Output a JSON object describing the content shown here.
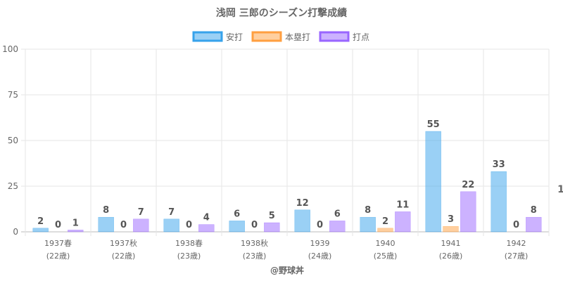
{
  "chart_data": {
    "type": "bar",
    "title": "浅岡 三郎のシーズン打撃成績",
    "categories": [
      "1937春",
      "1937秋",
      "1938春",
      "1938秋",
      "1939",
      "1940",
      "1941",
      "1942"
    ],
    "category_sublabels": [
      "(22歳)",
      "(22歳)",
      "(23歳)",
      "(23歳)",
      "(24歳)",
      "(25歳)",
      "(26歳)",
      "(27歳)"
    ],
    "series": [
      {
        "name": "安打",
        "values": [
          2,
          8,
          7,
          6,
          12,
          8,
          55,
          33
        ],
        "color": "#36a2eb"
      },
      {
        "name": "本塁打",
        "values": [
          0,
          0,
          0,
          0,
          0,
          2,
          3,
          0
        ],
        "color": "#ff9f40"
      },
      {
        "name": "打点",
        "values": [
          1,
          7,
          4,
          5,
          6,
          11,
          22,
          8
        ],
        "color": "#9966ff"
      }
    ],
    "yticks": [
      0,
      25,
      50,
      75,
      100
    ],
    "ylim": [
      0,
      100
    ],
    "grid": true,
    "legend_position": "top",
    "right_axis_label": "1"
  },
  "credit": "@野球丼"
}
